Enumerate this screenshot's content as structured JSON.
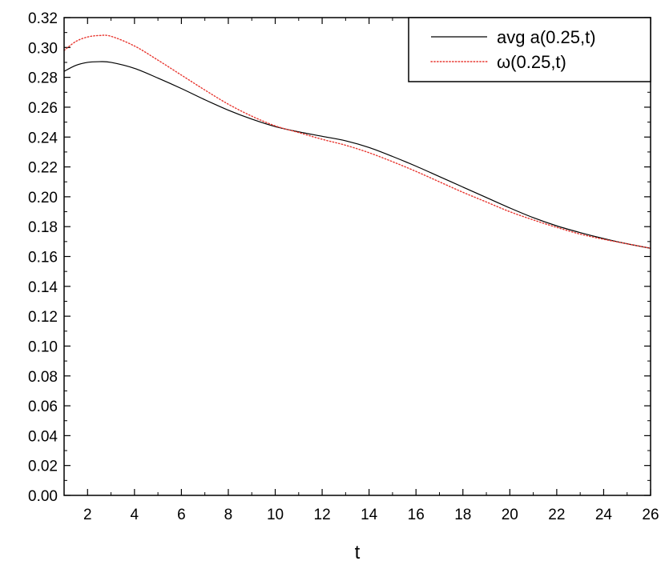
{
  "chart_data": {
    "type": "line",
    "title": "",
    "xlabel": "t",
    "ylabel": "",
    "xlim": [
      1,
      26
    ],
    "ylim": [
      0.0,
      0.32
    ],
    "x_ticks": [
      2,
      4,
      6,
      8,
      10,
      12,
      14,
      16,
      18,
      20,
      22,
      24,
      26
    ],
    "x_tick_labels": [
      "2",
      "4",
      "6",
      "8",
      "10",
      "12",
      "14",
      "16",
      "18",
      "20",
      "22",
      "24",
      "26"
    ],
    "y_ticks": [
      0.0,
      0.02,
      0.04,
      0.06,
      0.08,
      0.1,
      0.12,
      0.14,
      0.16,
      0.18,
      0.2,
      0.22,
      0.24,
      0.26,
      0.28,
      0.3,
      0.32
    ],
    "y_tick_labels": [
      "0.00",
      "0.02",
      "0.04",
      "0.06",
      "0.08",
      "0.10",
      "0.12",
      "0.14",
      "0.16",
      "0.18",
      "0.20",
      "0.22",
      "0.24",
      "0.26",
      "0.28",
      "0.30",
      "0.32"
    ],
    "grid": false,
    "legend_position": "top-right",
    "series": [
      {
        "name": "avg a(0.25,t)",
        "color": "#000000",
        "style": "solid",
        "x": [
          1,
          1.5,
          2,
          2.5,
          3,
          4,
          5,
          6,
          7,
          8,
          9,
          10,
          11,
          12,
          13,
          14,
          15,
          16,
          17,
          18,
          19,
          20,
          21,
          22,
          23,
          24,
          25,
          26
        ],
        "y": [
          0.284,
          0.288,
          0.29,
          0.2905,
          0.29,
          0.286,
          0.2795,
          0.2725,
          0.265,
          0.258,
          0.252,
          0.247,
          0.2435,
          0.2405,
          0.2375,
          0.233,
          0.227,
          0.2205,
          0.2135,
          0.2065,
          0.1995,
          0.1925,
          0.186,
          0.1805,
          0.176,
          0.172,
          0.1685,
          0.1655
        ]
      },
      {
        "name": "ω(0.25,t)",
        "color": "#e8362f",
        "style": "dotted",
        "x": [
          1,
          1.5,
          2,
          2.5,
          3,
          4,
          5,
          6,
          7,
          8,
          9,
          10,
          11,
          12,
          13,
          14,
          15,
          16,
          17,
          18,
          19,
          20,
          21,
          22,
          23,
          24,
          25,
          26
        ],
        "y": [
          0.298,
          0.304,
          0.307,
          0.308,
          0.3075,
          0.301,
          0.2915,
          0.2815,
          0.2715,
          0.262,
          0.254,
          0.2475,
          0.243,
          0.2385,
          0.2345,
          0.2295,
          0.2235,
          0.217,
          0.21,
          0.203,
          0.1965,
          0.19,
          0.1845,
          0.1795,
          0.175,
          0.1715,
          0.1685,
          0.1655
        ]
      }
    ]
  }
}
